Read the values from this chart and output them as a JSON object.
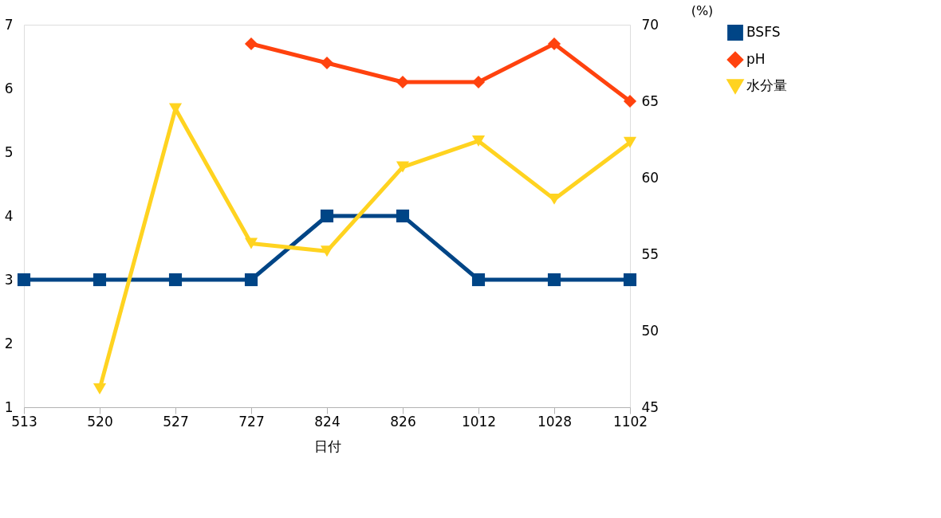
{
  "chart_data": {
    "type": "line",
    "xlabel": "日付",
    "y2label": "(%)",
    "categories": [
      "513",
      "520",
      "527",
      "727",
      "824",
      "826",
      "1012",
      "1028",
      "1102"
    ],
    "series": [
      {
        "name": "BSFS",
        "color": "#004586",
        "marker": "square",
        "values": [
          3,
          3,
          3,
          3,
          4,
          4,
          3,
          3,
          3
        ]
      },
      {
        "name": "pH",
        "color": "#ff420e",
        "marker": "diamond",
        "values": [
          null,
          null,
          null,
          6.7,
          6.4,
          6.1,
          6.1,
          6.7,
          5.8
        ]
      },
      {
        "name": "水分量",
        "color": "#ffd320",
        "marker": "triangle-down",
        "axis": "y2",
        "values": [
          null,
          46.2,
          64.5,
          55.7,
          55.2,
          60.7,
          62.4,
          58.6,
          62.3
        ]
      }
    ],
    "ylim": [
      1,
      7
    ],
    "yticks": [
      1,
      2,
      3,
      4,
      5,
      6,
      7
    ],
    "y2lim": [
      45,
      70
    ],
    "y2ticks": [
      45,
      50,
      55,
      60,
      65,
      70
    ],
    "grid": false,
    "legend": "right"
  }
}
